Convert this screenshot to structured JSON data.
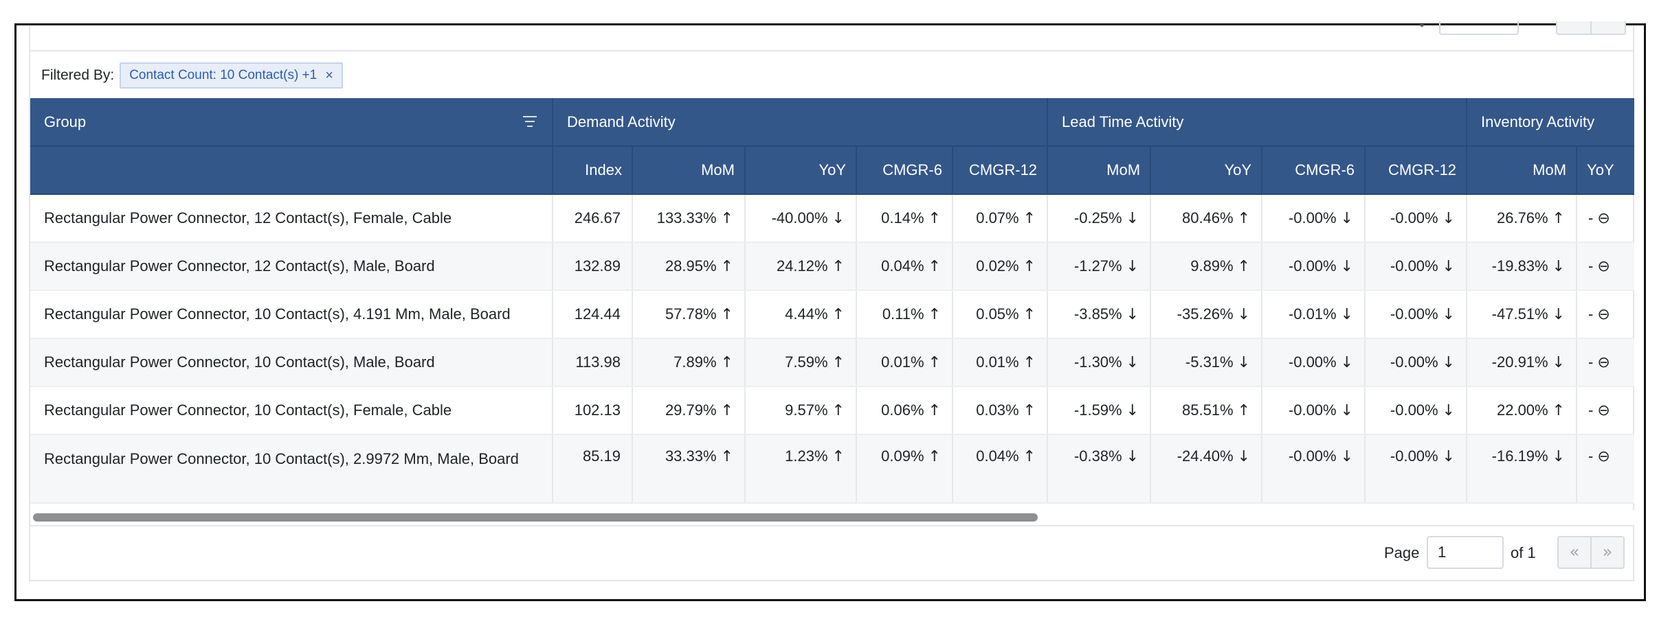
{
  "filter": {
    "label": "Filtered By:",
    "chip_text": "Contact Count: 10 Contact(s) +1",
    "chip_close": "×"
  },
  "table": {
    "group_header": "Group",
    "activity_groups": [
      "Demand Activity",
      "Lead Time Activity",
      "Inventory Activity"
    ],
    "sub_headers": [
      "Index",
      "MoM",
      "YoY",
      "CMGR-6",
      "CMGR-12",
      "MoM",
      "YoY",
      "CMGR-6",
      "CMGR-12",
      "MoM",
      "YoY"
    ],
    "rows": [
      {
        "group": "Rectangular Power Connector, 12 Contact(s), Female, Cable",
        "cells": [
          {
            "v": "246.67",
            "a": ""
          },
          {
            "v": "133.33%",
            "a": "↑"
          },
          {
            "v": "-40.00%",
            "a": "↓"
          },
          {
            "v": "0.14%",
            "a": "↑"
          },
          {
            "v": "0.07%",
            "a": "↑"
          },
          {
            "v": "-0.25%",
            "a": "↓"
          },
          {
            "v": "80.46%",
            "a": "↑"
          },
          {
            "v": "-0.00%",
            "a": "↓"
          },
          {
            "v": "-0.00%",
            "a": "↓"
          },
          {
            "v": "26.76%",
            "a": "↑"
          },
          {
            "v": "-",
            "a": "⊖"
          }
        ]
      },
      {
        "group": "Rectangular Power Connector, 12 Contact(s), Male, Board",
        "cells": [
          {
            "v": "132.89",
            "a": ""
          },
          {
            "v": "28.95%",
            "a": "↑"
          },
          {
            "v": "24.12%",
            "a": "↑"
          },
          {
            "v": "0.04%",
            "a": "↑"
          },
          {
            "v": "0.02%",
            "a": "↑"
          },
          {
            "v": "-1.27%",
            "a": "↓"
          },
          {
            "v": "9.89%",
            "a": "↑"
          },
          {
            "v": "-0.00%",
            "a": "↓"
          },
          {
            "v": "-0.00%",
            "a": "↓"
          },
          {
            "v": "-19.83%",
            "a": "↓"
          },
          {
            "v": "-",
            "a": "⊖"
          }
        ]
      },
      {
        "group": "Rectangular Power Connector, 10 Contact(s), 4.191 Mm, Male, Board",
        "cells": [
          {
            "v": "124.44",
            "a": ""
          },
          {
            "v": "57.78%",
            "a": "↑"
          },
          {
            "v": "4.44%",
            "a": "↑"
          },
          {
            "v": "0.11%",
            "a": "↑"
          },
          {
            "v": "0.05%",
            "a": "↑"
          },
          {
            "v": "-3.85%",
            "a": "↓"
          },
          {
            "v": "-35.26%",
            "a": "↓"
          },
          {
            "v": "-0.01%",
            "a": "↓"
          },
          {
            "v": "-0.00%",
            "a": "↓"
          },
          {
            "v": "-47.51%",
            "a": "↓"
          },
          {
            "v": "-",
            "a": "⊖"
          }
        ]
      },
      {
        "group": "Rectangular Power Connector, 10 Contact(s), Male, Board",
        "cells": [
          {
            "v": "113.98",
            "a": ""
          },
          {
            "v": "7.89%",
            "a": "↑"
          },
          {
            "v": "7.59%",
            "a": "↑"
          },
          {
            "v": "0.01%",
            "a": "↑"
          },
          {
            "v": "0.01%",
            "a": "↑"
          },
          {
            "v": "-1.30%",
            "a": "↓"
          },
          {
            "v": "-5.31%",
            "a": "↓"
          },
          {
            "v": "-0.00%",
            "a": "↓"
          },
          {
            "v": "-0.00%",
            "a": "↓"
          },
          {
            "v": "-20.91%",
            "a": "↓"
          },
          {
            "v": "-",
            "a": "⊖"
          }
        ]
      },
      {
        "group": "Rectangular Power Connector, 10 Contact(s), Female, Cable",
        "cells": [
          {
            "v": "102.13",
            "a": ""
          },
          {
            "v": "29.79%",
            "a": "↑"
          },
          {
            "v": "9.57%",
            "a": "↑"
          },
          {
            "v": "0.06%",
            "a": "↑"
          },
          {
            "v": "0.03%",
            "a": "↑"
          },
          {
            "v": "-1.59%",
            "a": "↓"
          },
          {
            "v": "85.51%",
            "a": "↑"
          },
          {
            "v": "-0.00%",
            "a": "↓"
          },
          {
            "v": "-0.00%",
            "a": "↓"
          },
          {
            "v": "22.00%",
            "a": "↑"
          },
          {
            "v": "-",
            "a": "⊖"
          }
        ]
      },
      {
        "group": "Rectangular Power Connector, 10 Contact(s), 2.9972 Mm, Male, Board",
        "cells": [
          {
            "v": "85.19",
            "a": ""
          },
          {
            "v": "33.33%",
            "a": "↑"
          },
          {
            "v": "1.23%",
            "a": "↑"
          },
          {
            "v": "0.09%",
            "a": "↑"
          },
          {
            "v": "0.04%",
            "a": "↑"
          },
          {
            "v": "-0.38%",
            "a": "↓"
          },
          {
            "v": "-24.40%",
            "a": "↓"
          },
          {
            "v": "-0.00%",
            "a": "↓"
          },
          {
            "v": "-0.00%",
            "a": "↓"
          },
          {
            "v": "-16.19%",
            "a": "↓"
          },
          {
            "v": "-",
            "a": "⊖"
          }
        ]
      }
    ]
  },
  "pager": {
    "page_label": "Page",
    "page_value": "1",
    "of_label": "of 1",
    "prev_icon": "«",
    "next_icon": "»"
  },
  "colors": {
    "header_bg": "#34578a",
    "chip_bg": "#e7eef8",
    "chip_text": "#2a5bb5",
    "row_alt_bg": "#f6f7f9"
  }
}
